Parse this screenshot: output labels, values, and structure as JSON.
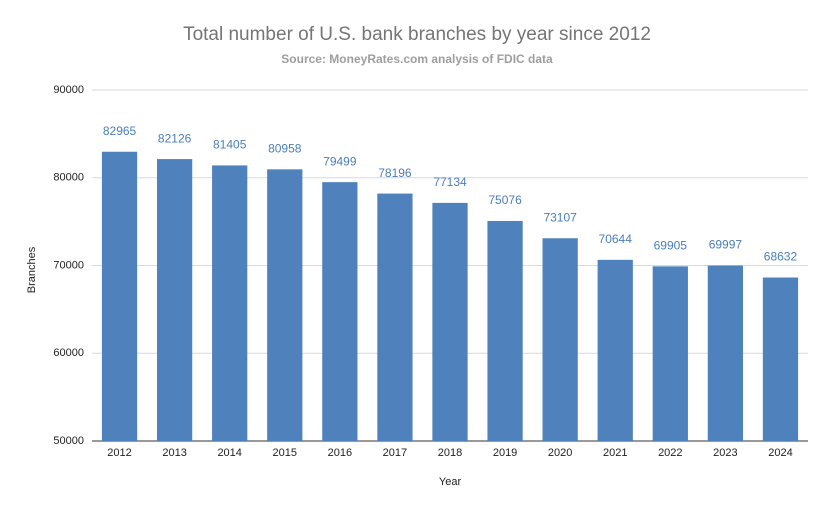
{
  "chart_data": {
    "type": "bar",
    "title": "Total number of U.S. bank branches by year since 2012",
    "subtitle": "Source: MoneyRates.com analysis of FDIC data",
    "x_label": "Year",
    "y_label": "Branches",
    "categories": [
      "2012",
      "2013",
      "2014",
      "2015",
      "2016",
      "2017",
      "2018",
      "2019",
      "2020",
      "2021",
      "2022",
      "2023",
      "2024"
    ],
    "values": [
      82965,
      82126,
      81405,
      80958,
      79499,
      78196,
      77134,
      75076,
      73107,
      70644,
      69905,
      69997,
      68632
    ],
    "color": "#4f81bd",
    "label_color": "#4a7ebb",
    "ylim": [
      50000,
      90000
    ],
    "yticks": [
      50000,
      60000,
      70000,
      80000,
      90000
    ],
    "grid": true
  }
}
